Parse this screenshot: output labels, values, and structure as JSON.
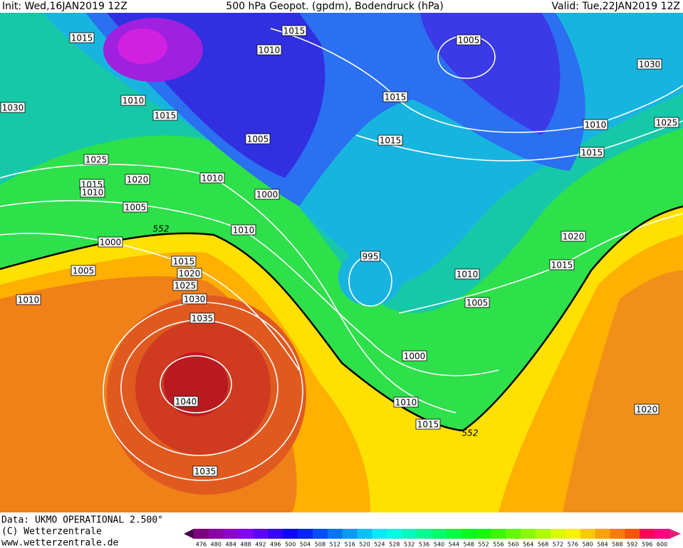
{
  "header": {
    "init": "Init: Wed,16JAN2019 12Z",
    "title": "500 hPa Geopot. (gpdm), Bodendruck (hPa)",
    "valid": "Valid: Tue,22JAN2019 12Z"
  },
  "isobar_labels": [
    "1015",
    "1015",
    "1010",
    "1005",
    "1030",
    "1010",
    "1015",
    "1015",
    "1030",
    "1010",
    "1025",
    "1005",
    "1015",
    "1015",
    "1025",
    "1015",
    "1010",
    "1020",
    "1010",
    "1000",
    "1005",
    "1010",
    "1020",
    "1000",
    "995",
    "1015",
    "1015",
    "1005",
    "1020",
    "1010",
    "1025",
    "1010",
    "1030",
    "1005",
    "1035",
    "1000",
    "1040",
    "1010",
    "1020",
    "1015",
    "1035"
  ],
  "contour_labels": [
    "552",
    "552"
  ],
  "footer": {
    "data": "Data: UKMO OPERATIONAL 2.500°",
    "copyright": "(C) Wetterzentrale",
    "url": "www.wetterzentrale.de"
  },
  "scale": {
    "values": [
      476,
      480,
      484,
      488,
      492,
      496,
      500,
      504,
      508,
      512,
      516,
      520,
      524,
      528,
      532,
      536,
      540,
      544,
      548,
      552,
      556,
      560,
      564,
      568,
      572,
      576,
      580,
      584,
      588,
      592,
      596,
      600
    ]
  }
}
